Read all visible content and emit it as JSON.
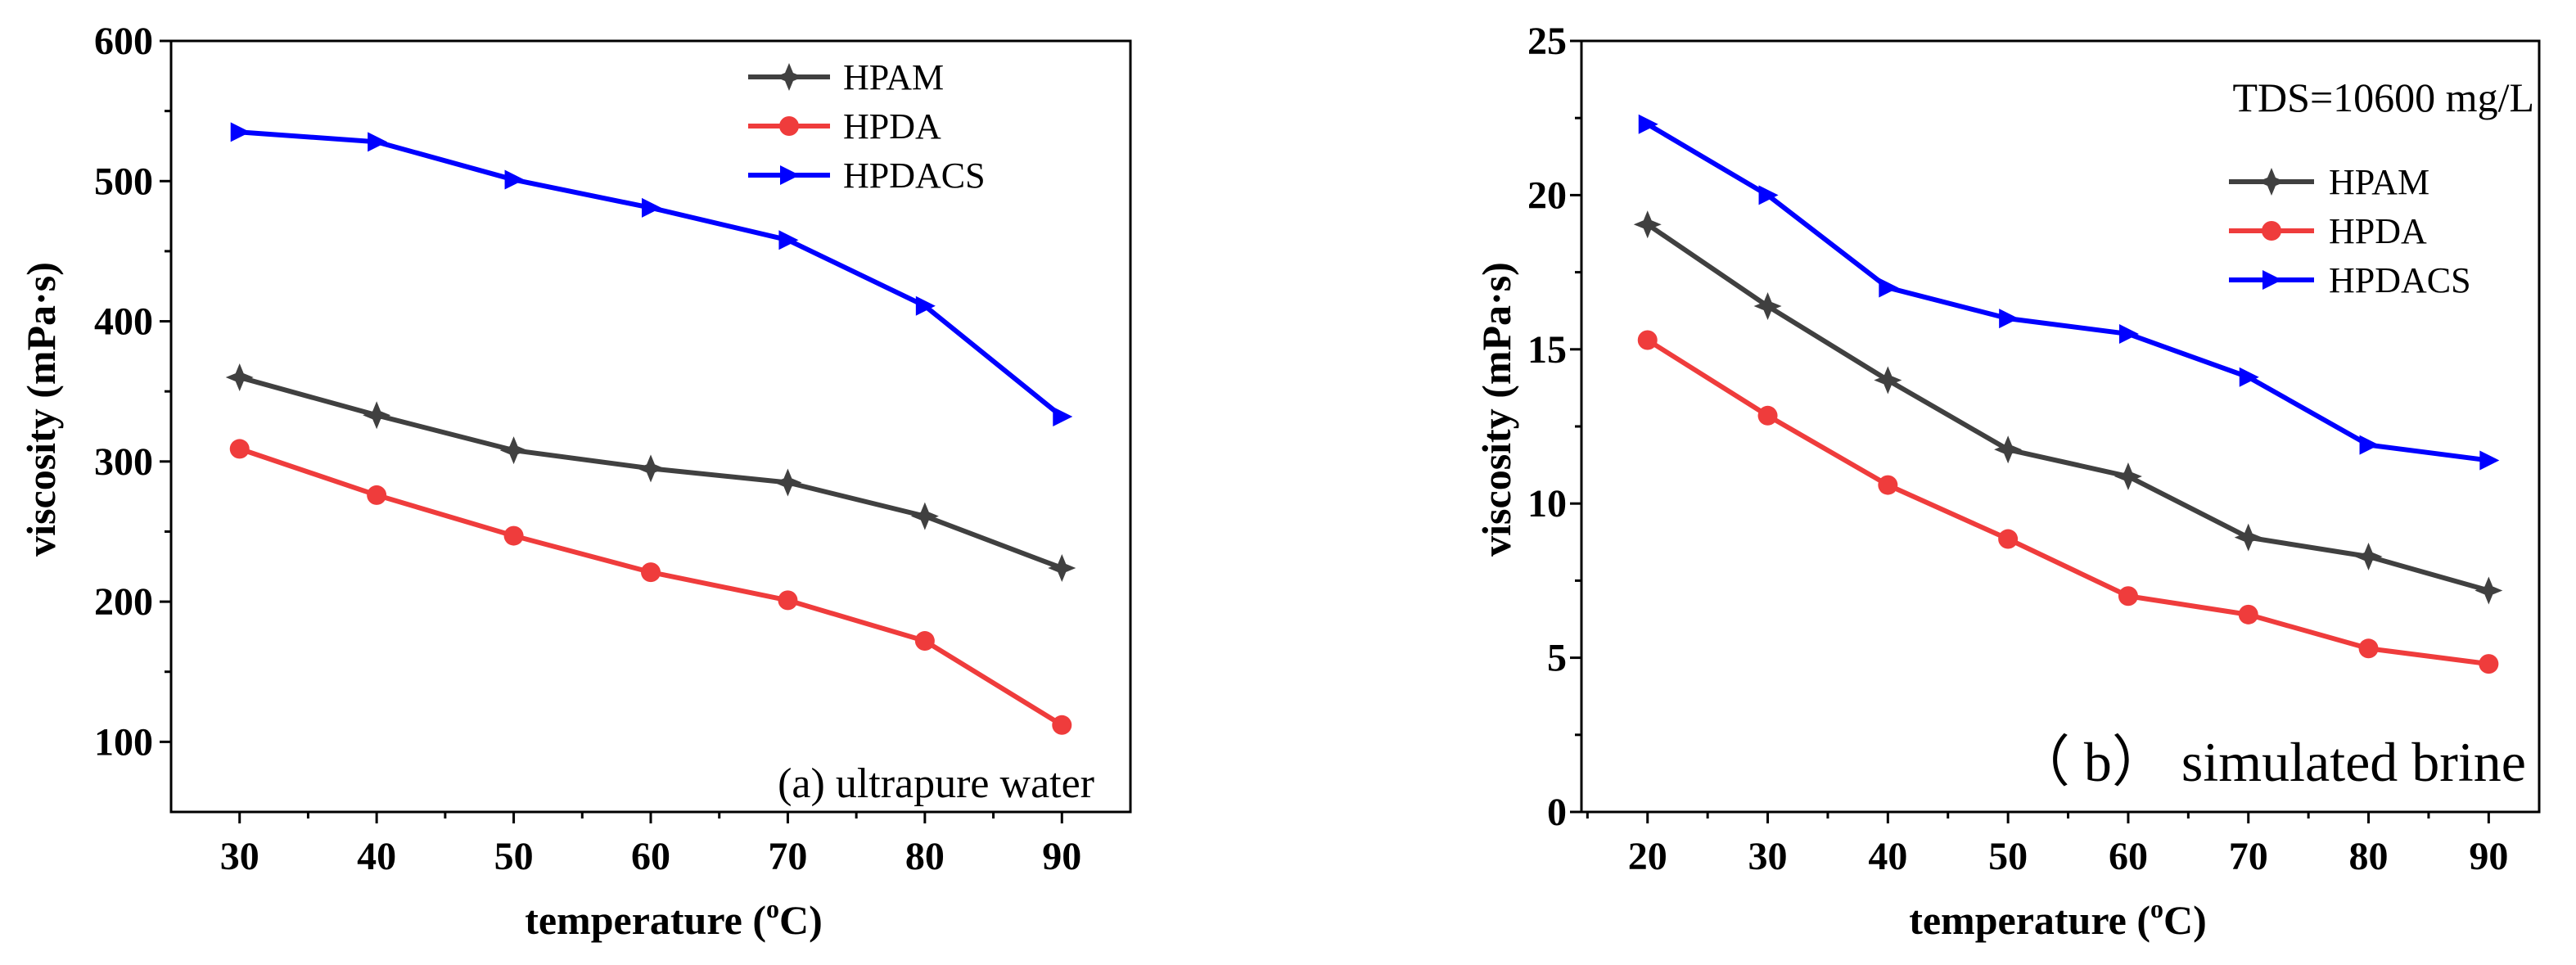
{
  "chart_data": [
    {
      "type": "line",
      "annotation": "(a) ultrapure water",
      "xlabel": {
        "pre": "temperature (",
        "sup": "o",
        "post": "C)"
      },
      "ylabel": "viscosity (mPa·s)",
      "x": [
        30,
        40,
        50,
        60,
        70,
        80,
        90
      ],
      "xlim": [
        25,
        95
      ],
      "ylim": [
        50,
        600
      ],
      "yticks": [
        100,
        200,
        300,
        400,
        500,
        600
      ],
      "legend": "top-right",
      "series": [
        {
          "name": "HPAM",
          "color": "#404040",
          "marker": "star-marker",
          "values": [
            360,
            333,
            308,
            295,
            285,
            261,
            224
          ]
        },
        {
          "name": "HPDA",
          "color": "#ef3c3c",
          "marker": "circle-marker",
          "values": [
            309,
            276,
            247,
            221,
            201,
            172,
            112
          ]
        },
        {
          "name": "HPDACS",
          "color": "#0000ff",
          "marker": "triangle-right-marker",
          "values": [
            535,
            528,
            501,
            481,
            458,
            411,
            332
          ]
        }
      ]
    },
    {
      "type": "line",
      "note": "TDS=10600 mg/L",
      "annotation": "（ b） simulated brine",
      "xlabel": {
        "pre": "temperature (",
        "sup": "o",
        "post": "C)"
      },
      "ylabel": "viscosity (mPa·s)",
      "x": [
        20,
        30,
        40,
        50,
        60,
        70,
        80,
        90
      ],
      "xlim": [
        14.5,
        94.2
      ],
      "ylim": [
        0,
        25
      ],
      "yticks": [
        0,
        5,
        10,
        15,
        20,
        25
      ],
      "legend": "top-right",
      "series": [
        {
          "name": "HPAM",
          "color": "#404040",
          "marker": "star-marker",
          "values": [
            19.05,
            16.4,
            14.0,
            11.75,
            10.88,
            8.9,
            8.28,
            7.18
          ]
        },
        {
          "name": "HPDA",
          "color": "#ef3c3c",
          "marker": "circle-marker",
          "values": [
            15.3,
            12.85,
            10.6,
            8.85,
            7.0,
            6.4,
            5.3,
            4.8
          ]
        },
        {
          "name": "HPDACS",
          "color": "#0000ff",
          "marker": "triangle-right-marker",
          "values": [
            22.3,
            20.0,
            17.0,
            16.0,
            15.5,
            14.1,
            11.9,
            11.4
          ]
        }
      ]
    }
  ]
}
